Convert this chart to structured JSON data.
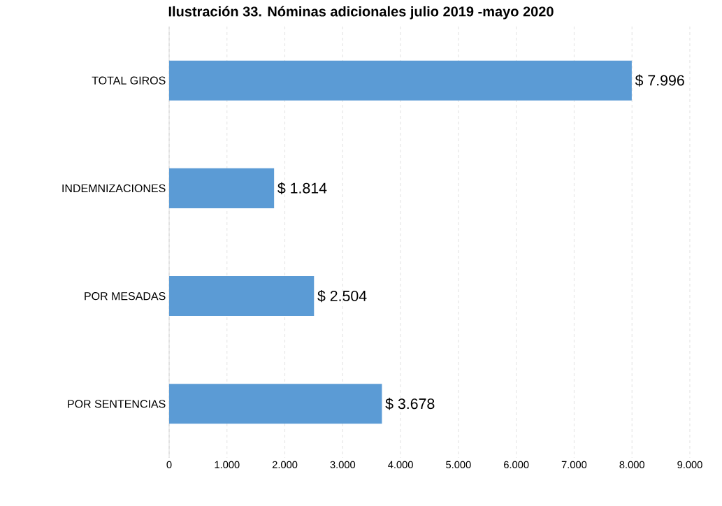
{
  "chart_data": {
    "type": "bar",
    "orientation": "horizontal",
    "title": "Ilustración 33. Nóminas adicionales julio 2019 -mayo 2020",
    "categories": [
      "TOTAL GIROS",
      "INDEMNIZACIONES",
      "POR MESADAS",
      "POR SENTENCIAS"
    ],
    "values": [
      7996,
      1814,
      2504,
      3678
    ],
    "color": "#5b9bd5",
    "value_labels": [
      "$ 7.996",
      "$ 1.814",
      "$ 2.504",
      "$ 3.678"
    ],
    "xlim": [
      0,
      9000
    ],
    "xticks": [
      0,
      {
        "value": 1000,
        "label": "1.000"
      },
      {
        "value": 2000,
        "label": "2.000"
      },
      {
        "value": 3000,
        "label": "3.000"
      },
      {
        "value": 4000,
        "label": "4.000"
      },
      {
        "value": 5000,
        "label": "5.000"
      },
      {
        "value": 6000,
        "label": "6.000"
      },
      {
        "value": 7000,
        "label": "7.000"
      },
      {
        "value": 8000,
        "label": "8.000"
      },
      {
        "value": 9000,
        "label": "9.000"
      }
    ],
    "grid": "x"
  }
}
